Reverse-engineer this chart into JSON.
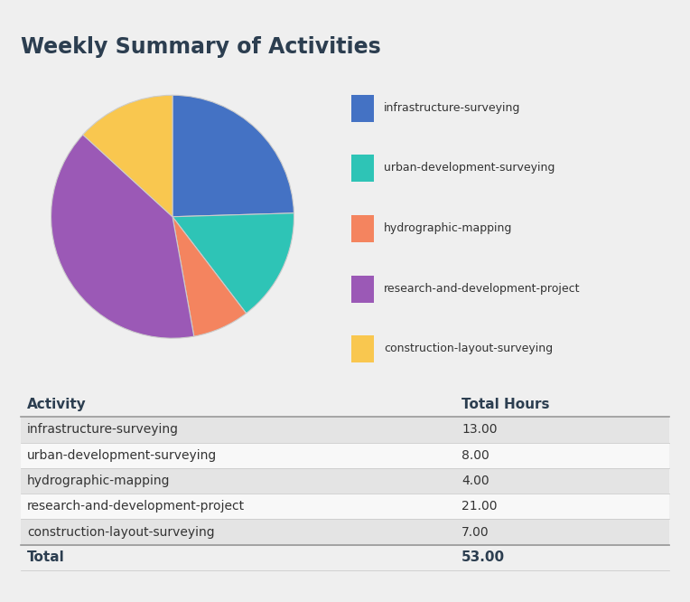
{
  "title": "Weekly Summary of Activities",
  "activities": [
    "infrastructure-surveying",
    "urban-development-surveying",
    "hydrographic-mapping",
    "research-and-development-project",
    "construction-layout-surveying"
  ],
  "hours": [
    13.0,
    8.0,
    4.0,
    21.0,
    7.0
  ],
  "total": 53.0,
  "colors": [
    "#4472C4",
    "#2EC4B6",
    "#F4845F",
    "#9B59B6",
    "#F9C74F"
  ],
  "background_color": "#EFEFEF",
  "title_color": "#2C3E50",
  "table_header_color": "#2C3E50",
  "table_row_alt_color": "#E4E4E4",
  "table_row_color": "#F8F8F8",
  "legend_labels": [
    "infrastructure-surveying",
    "urban-development-surveying",
    "hydrographic-mapping",
    "research-and-development-project",
    "construction-layout-surveying"
  ]
}
